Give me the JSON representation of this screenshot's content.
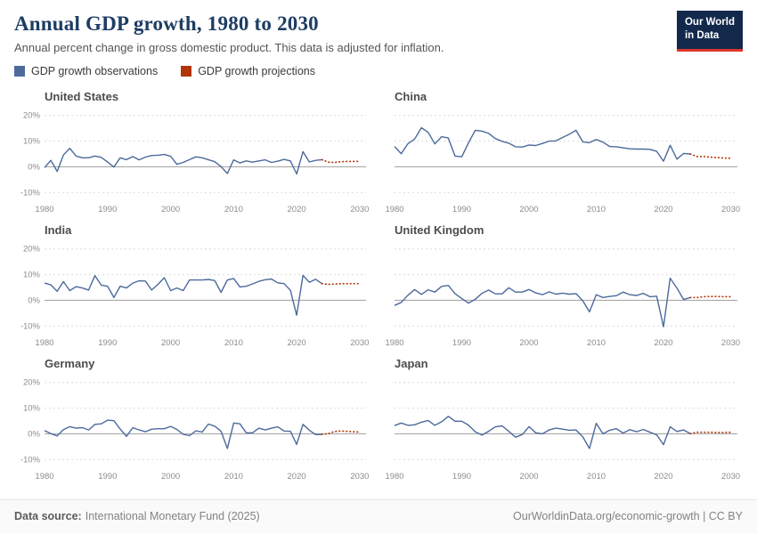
{
  "header": {
    "title": "Annual GDP growth, 1980 to 2030",
    "subtitle": "Annual percent change in gross domestic product. This data is adjusted for inflation.",
    "logo": {
      "line1": "Our World",
      "line2": "in Data",
      "bg_color": "#12294c",
      "accent_color": "#e0362c"
    }
  },
  "legend": [
    {
      "label": "GDP growth observations",
      "color": "#4C6A9C"
    },
    {
      "label": "GDP growth projections",
      "color": "#B13507"
    }
  ],
  "axes": {
    "x_range": [
      1980,
      2031
    ],
    "y_range": [
      -13,
      23
    ],
    "yticks": [
      {
        "v": 20,
        "label": "20%"
      },
      {
        "v": 10,
        "label": "10%"
      },
      {
        "v": 0,
        "label": "0%"
      },
      {
        "v": -10,
        "label": "-10%"
      }
    ],
    "xticks": [
      {
        "v": 1980,
        "label": "1980"
      },
      {
        "v": 1990,
        "label": "1990"
      },
      {
        "v": 2000,
        "label": "2000"
      },
      {
        "v": 2010,
        "label": "2010"
      },
      {
        "v": 2020,
        "label": "2020"
      },
      {
        "v": 2030,
        "label": "2030"
      }
    ],
    "grid": true
  },
  "chart_data": [
    {
      "type": "line",
      "title": "United States",
      "xlim": [
        1980,
        2030
      ],
      "ylim": [
        -10,
        20
      ],
      "series": [
        {
          "name": "GDP growth observations",
          "color": "#4C6A9C",
          "style": "solid",
          "x_start": 1980,
          "values": [
            -0.3,
            2.5,
            -1.8,
            4.6,
            7.2,
            4.2,
            3.5,
            3.5,
            4.2,
            3.7,
            1.9,
            -0.1,
            3.5,
            2.8,
            4.0,
            2.7,
            3.8,
            4.4,
            4.5,
            4.8,
            4.1,
            1.0,
            1.7,
            2.8,
            3.9,
            3.5,
            2.8,
            2.0,
            0.1,
            -2.6,
            2.7,
            1.5,
            2.3,
            1.8,
            2.3,
            2.7,
            1.7,
            2.2,
            2.9,
            2.3,
            -2.8,
            5.9,
            1.9,
            2.5,
            2.8
          ]
        },
        {
          "name": "GDP growth projections",
          "color": "#B13507",
          "style": "dotted",
          "x_start": 2024,
          "values": [
            2.8,
            1.8,
            1.7,
            2.0,
            2.1,
            2.1,
            2.1
          ]
        }
      ]
    },
    {
      "type": "line",
      "title": "China",
      "xlim": [
        1980,
        2030
      ],
      "ylim": [
        -10,
        20
      ],
      "series": [
        {
          "name": "GDP growth observations",
          "color": "#4C6A9C",
          "style": "solid",
          "x_start": 1980,
          "values": [
            7.9,
            5.1,
            9.0,
            10.8,
            15.2,
            13.4,
            8.9,
            11.7,
            11.2,
            4.2,
            3.9,
            9.3,
            14.2,
            13.9,
            13.0,
            11.0,
            9.9,
            9.2,
            7.8,
            7.7,
            8.5,
            8.3,
            9.1,
            10.0,
            10.1,
            11.4,
            12.7,
            14.2,
            9.7,
            9.4,
            10.6,
            9.6,
            7.9,
            7.8,
            7.4,
            7.0,
            6.9,
            6.9,
            6.8,
            6.0,
            2.2,
            8.4,
            3.0,
            5.2,
            5.0
          ]
        },
        {
          "name": "GDP growth projections",
          "color": "#B13507",
          "style": "dotted",
          "x_start": 2024,
          "values": [
            5.0,
            4.0,
            4.0,
            3.8,
            3.6,
            3.4,
            3.3
          ]
        }
      ]
    },
    {
      "type": "line",
      "title": "India",
      "xlim": [
        1980,
        2030
      ],
      "ylim": [
        -10,
        20
      ],
      "series": [
        {
          "name": "GDP growth observations",
          "color": "#4C6A9C",
          "style": "solid",
          "x_start": 1980,
          "values": [
            6.7,
            6.0,
            3.5,
            7.3,
            3.8,
            5.3,
            4.8,
            4.0,
            9.6,
            5.9,
            5.5,
            1.1,
            5.5,
            4.8,
            6.7,
            7.6,
            7.5,
            4.0,
            6.2,
            8.8,
            3.8,
            4.8,
            3.8,
            7.9,
            7.9,
            7.9,
            8.1,
            7.7,
            3.1,
            7.9,
            8.5,
            5.2,
            5.5,
            6.4,
            7.4,
            8.0,
            8.3,
            6.8,
            6.5,
            3.9,
            -5.8,
            9.7,
            7.0,
            8.2,
            6.5
          ]
        },
        {
          "name": "GDP growth projections",
          "color": "#B13507",
          "style": "dotted",
          "x_start": 2024,
          "values": [
            6.5,
            6.2,
            6.3,
            6.5,
            6.5,
            6.5,
            6.5
          ]
        }
      ]
    },
    {
      "type": "line",
      "title": "United Kingdom",
      "xlim": [
        1980,
        2030
      ],
      "ylim": [
        -10,
        20
      ],
      "series": [
        {
          "name": "GDP growth observations",
          "color": "#4C6A9C",
          "style": "solid",
          "x_start": 1980,
          "values": [
            -2.0,
            -0.8,
            2.0,
            4.2,
            2.3,
            4.1,
            3.2,
            5.4,
            5.8,
            2.6,
            0.7,
            -1.1,
            0.4,
            2.7,
            4.0,
            2.5,
            2.5,
            4.9,
            3.2,
            3.2,
            4.2,
            2.9,
            2.2,
            3.3,
            2.4,
            2.8,
            2.4,
            2.6,
            -0.2,
            -4.5,
            2.2,
            1.1,
            1.5,
            1.8,
            3.2,
            2.2,
            1.9,
            2.7,
            1.4,
            1.6,
            -10.3,
            8.6,
            4.8,
            0.3,
            1.1
          ]
        },
        {
          "name": "GDP growth projections",
          "color": "#B13507",
          "style": "dotted",
          "x_start": 2024,
          "values": [
            1.1,
            1.1,
            1.4,
            1.5,
            1.5,
            1.4,
            1.4
          ]
        }
      ]
    },
    {
      "type": "line",
      "title": "Germany",
      "xlim": [
        1980,
        2030
      ],
      "ylim": [
        -10,
        20
      ],
      "series": [
        {
          "name": "GDP growth observations",
          "color": "#4C6A9C",
          "style": "solid",
          "x_start": 1980,
          "values": [
            1.3,
            0.1,
            -0.8,
            1.6,
            2.8,
            2.2,
            2.4,
            1.5,
            3.7,
            3.9,
            5.3,
            5.1,
            1.9,
            -1.0,
            2.4,
            1.5,
            0.8,
            1.8,
            2.0,
            2.0,
            2.9,
            1.7,
            -0.2,
            -0.7,
            1.2,
            0.7,
            3.8,
            3.0,
            1.0,
            -5.7,
            4.2,
            3.9,
            0.4,
            0.4,
            2.2,
            1.5,
            2.2,
            2.7,
            1.1,
            1.0,
            -4.1,
            3.7,
            1.4,
            -0.3,
            -0.2
          ]
        },
        {
          "name": "GDP growth projections",
          "color": "#B13507",
          "style": "dotted",
          "x_start": 2024,
          "values": [
            -0.2,
            0.0,
            0.9,
            1.1,
            1.0,
            0.8,
            0.7
          ]
        }
      ]
    },
    {
      "type": "line",
      "title": "Japan",
      "xlim": [
        1980,
        2030
      ],
      "ylim": [
        -10,
        20
      ],
      "series": [
        {
          "name": "GDP growth observations",
          "color": "#4C6A9C",
          "style": "solid",
          "x_start": 1980,
          "values": [
            3.2,
            4.2,
            3.3,
            3.5,
            4.5,
            5.2,
            3.3,
            4.7,
            6.8,
            4.9,
            4.9,
            3.4,
            0.8,
            -0.5,
            1.0,
            2.7,
            3.1,
            1.0,
            -1.3,
            -0.3,
            2.8,
            0.4,
            0.0,
            1.5,
            2.2,
            1.8,
            1.4,
            1.5,
            -1.2,
            -5.7,
            4.1,
            0.0,
            1.4,
            2.0,
            0.3,
            1.6,
            0.8,
            1.7,
            0.6,
            -0.4,
            -4.2,
            2.7,
            0.9,
            1.5,
            0.1
          ]
        },
        {
          "name": "GDP growth projections",
          "color": "#B13507",
          "style": "dotted",
          "x_start": 2024,
          "values": [
            0.1,
            0.6,
            0.6,
            0.6,
            0.5,
            0.5,
            0.6
          ]
        }
      ]
    }
  ],
  "footer": {
    "source_label": "Data source:",
    "source_value": "International Monetary Fund (2025)",
    "attribution": "OurWorldinData.org/economic-growth | CC BY"
  }
}
